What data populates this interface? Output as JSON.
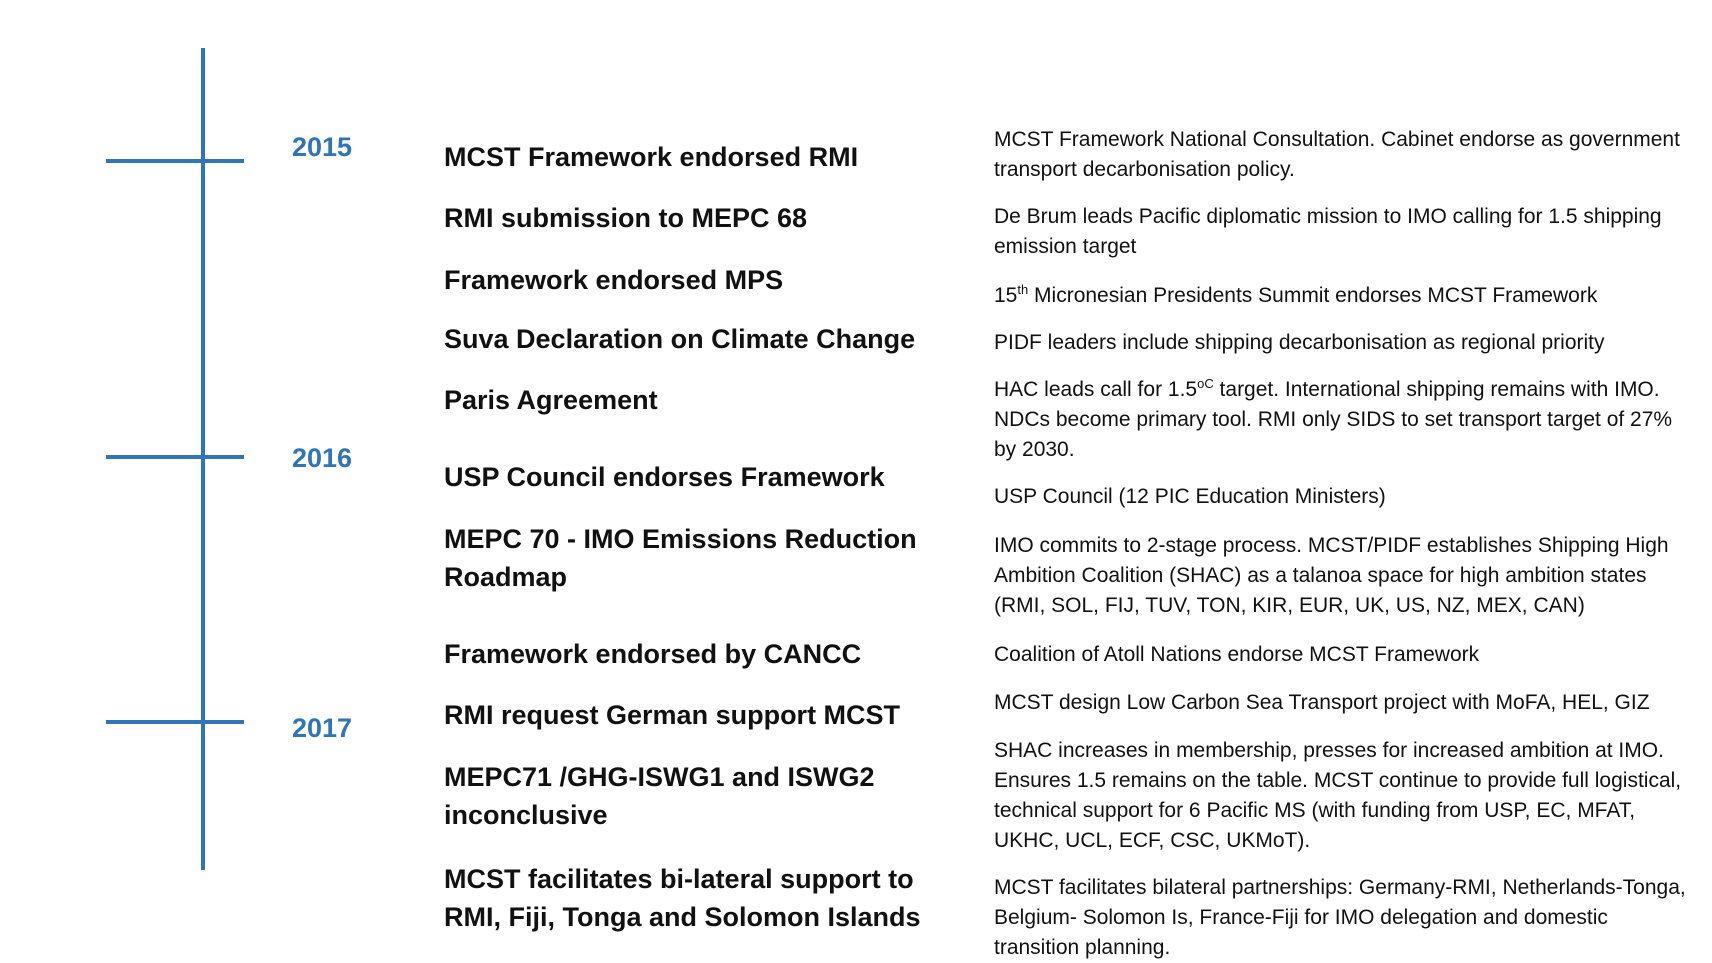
{
  "timeline": {
    "color": "#2f75b8",
    "years": [
      "2015",
      "2016",
      "2017"
    ]
  },
  "events": [
    {
      "title": "MCST Framework endorsed RMI",
      "description": "MCST Framework National Consultation. Cabinet endorse as government transport decarbonisation policy."
    },
    {
      "title": "RMI submission to MEPC 68",
      "description": "De Brum leads Pacific diplomatic mission to IMO calling for 1.5 shipping emission target"
    },
    {
      "title": "Framework endorsed MPS",
      "description_pre": "15",
      "description_sup": "th",
      "description_post": " Micronesian Presidents Summit endorses MCST Framework"
    },
    {
      "title": "Suva Declaration on Climate Change",
      "description": "PIDF leaders include shipping decarbonisation as regional priority"
    },
    {
      "title": "Paris Agreement",
      "description_pre": "HAC leads call for 1.5",
      "description_sup": "oC",
      "description_post": " target. International shipping remains with IMO. NDCs become primary tool. RMI only SIDS to set transport target of 27% by 2030."
    },
    {
      "title": "USP Council endorses Framework",
      "description": "USP Council (12 PIC Education Ministers)"
    },
    {
      "title_line1": "MEPC 70 - IMO Emissions Reduction",
      "title_line2": "Roadmap",
      "description": "IMO commits to 2-stage process. MCST/PIDF establishes Shipping High Ambition Coalition (SHAC) as a talanoa space for high ambition states (RMI, SOL, FIJ, TUV, TON, KIR, EUR, UK, US, NZ, MEX, CAN)"
    },
    {
      "title": "Framework endorsed by CANCC",
      "description": "Coalition of Atoll Nations endorse MCST Framework"
    },
    {
      "title": "RMI request German support MCST",
      "description": "MCST design Low Carbon Sea Transport project with MoFA, HEL, GIZ"
    },
    {
      "title_line1": "MEPC71 /GHG-ISWG1 and ISWG2",
      "title_line2": "inconclusive",
      "description": "SHAC increases in membership,  presses for increased ambition at IMO.  Ensures 1.5 remains on the table. MCST continue to provide full logistical, technical support for 6 Pacific MS (with funding from USP, EC, MFAT, UKHC, UCL, ECF, CSC, UKMoT)."
    },
    {
      "title_line1": "MCST facilitates bi-lateral support to",
      "title_line2": "RMI, Fiji, Tonga and Solomon Islands",
      "description": "MCST facilitates bilateral partnerships: Germany-RMI, Netherlands-Tonga, Belgium- Solomon Is, France-Fiji for  IMO delegation and domestic transition planning."
    }
  ]
}
